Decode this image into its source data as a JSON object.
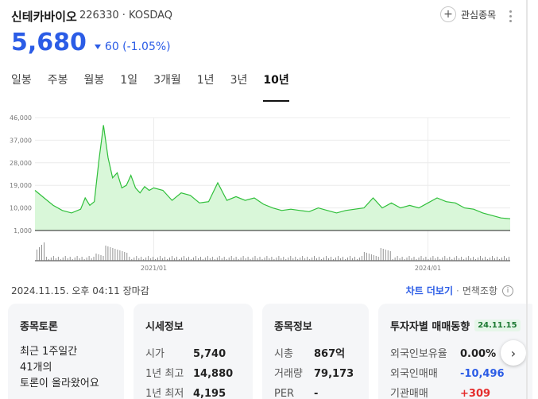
{
  "stock": {
    "name": "신테카바이오",
    "code": "226330",
    "market": "KOSDAQ",
    "price": "5,680",
    "change": "60 (-1.05%)",
    "watchlist_label": "관심종목"
  },
  "tabs": [
    "일봉",
    "주봉",
    "월봉",
    "1일",
    "3개월",
    "1년",
    "3년",
    "10년"
  ],
  "active_tab": "10년",
  "chart_data": {
    "type": "area",
    "title": "",
    "y_ticks": [
      "46,000",
      "37,000",
      "28,000",
      "19,000",
      "10,000",
      "1,000"
    ],
    "x_ticks": [
      "2021/01",
      "2024/01"
    ],
    "ylim": [
      1000,
      46000
    ],
    "xlim": [
      2019.7,
      2024.9
    ],
    "grid": true,
    "series": [
      {
        "x": [
          2019.7,
          2019.8,
          2019.9,
          2020.0,
          2020.1,
          2020.2,
          2020.25,
          2020.3,
          2020.35,
          2020.4,
          2020.45,
          2020.5,
          2020.55,
          2020.6,
          2020.65,
          2020.7,
          2020.75,
          2020.8,
          2020.85,
          2020.9,
          2020.95,
          2021.0,
          2021.1,
          2021.2,
          2021.3,
          2021.4,
          2021.5,
          2021.6,
          2021.7,
          2021.8,
          2021.9,
          2022.0,
          2022.1,
          2022.2,
          2022.3,
          2022.4,
          2022.5,
          2022.6,
          2022.7,
          2022.8,
          2022.9,
          2023.0,
          2023.1,
          2023.2,
          2023.3,
          2023.4,
          2023.5,
          2023.6,
          2023.7,
          2023.8,
          2023.9,
          2024.0,
          2024.1,
          2024.2,
          2024.3,
          2024.4,
          2024.5,
          2024.6,
          2024.7,
          2024.8,
          2024.9
        ],
        "y": [
          17000,
          14000,
          11000,
          9000,
          8000,
          9500,
          14000,
          11000,
          12500,
          29000,
          43000,
          30000,
          22000,
          24000,
          18000,
          19000,
          23000,
          18000,
          16000,
          18500,
          17000,
          18000,
          17000,
          13000,
          16000,
          15000,
          12000,
          12500,
          20000,
          13000,
          14500,
          13000,
          14000,
          11500,
          10000,
          9000,
          9500,
          9000,
          8500,
          10000,
          9000,
          8000,
          9000,
          9500,
          10000,
          14000,
          10000,
          12000,
          10000,
          11000,
          10000,
          12000,
          14000,
          12500,
          12000,
          10000,
          9500,
          8000,
          7000,
          6000,
          5680
        ]
      }
    ]
  },
  "timestamp": "2024.11.15. 오후 04:11 장마감",
  "links": {
    "chart_more": "차트 더보기",
    "sep": "·",
    "disclaimer": "면책조항"
  },
  "cards": {
    "discussion": {
      "title": "종목토론",
      "line1": "최근 1주일간",
      "line2": "41개의",
      "line3": "토론이 올라왔어요"
    },
    "market_info": {
      "title": "시세정보",
      "rows": [
        {
          "k": "시가",
          "v": "5,740"
        },
        {
          "k": "1년 최고",
          "v": "14,880"
        },
        {
          "k": "1년 최저",
          "v": "4,195"
        }
      ]
    },
    "stock_info": {
      "title": "종목정보",
      "rows": [
        {
          "k": "시총",
          "v": "867억"
        },
        {
          "k": "거래량",
          "v": "79,173"
        },
        {
          "k": "PER",
          "v": "-"
        }
      ]
    },
    "investor": {
      "title": "투자자별 매매동향",
      "date": "24.11.15",
      "rows": [
        {
          "k": "외국인보유율",
          "v": "0.00%"
        },
        {
          "k": "외국인매매",
          "v": "-10,496"
        },
        {
          "k": "기관매매",
          "v": "+309"
        }
      ]
    }
  },
  "colors": {
    "down": "#2b5ce6",
    "up": "#e52d2d",
    "line": "#2fbf3a",
    "fill": "#d9f7d9"
  }
}
